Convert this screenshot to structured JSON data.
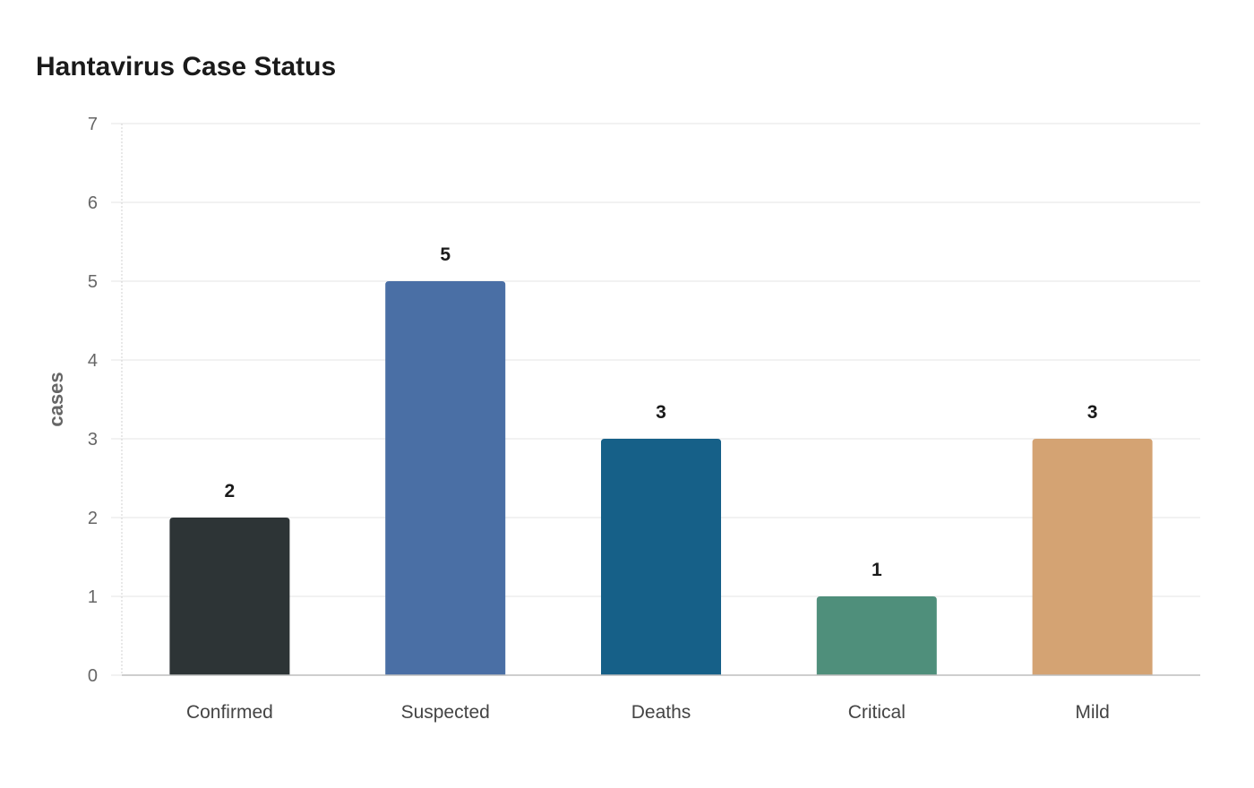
{
  "chart_data": {
    "type": "bar",
    "title": "Hantavirus Case Status",
    "xlabel": "",
    "ylabel": "cases",
    "categories": [
      "Confirmed",
      "Suspected",
      "Deaths",
      "Critical",
      "Mild"
    ],
    "values": [
      2,
      5,
      3,
      1,
      3
    ],
    "colors": [
      "#2d3436",
      "#4a6fa5",
      "#166088",
      "#4f8f7b",
      "#d4a373"
    ],
    "ylim": [
      0,
      7
    ],
    "yticks": [
      0,
      1,
      2,
      3,
      4,
      5,
      6,
      7
    ],
    "grid": true,
    "data_labels": true
  }
}
